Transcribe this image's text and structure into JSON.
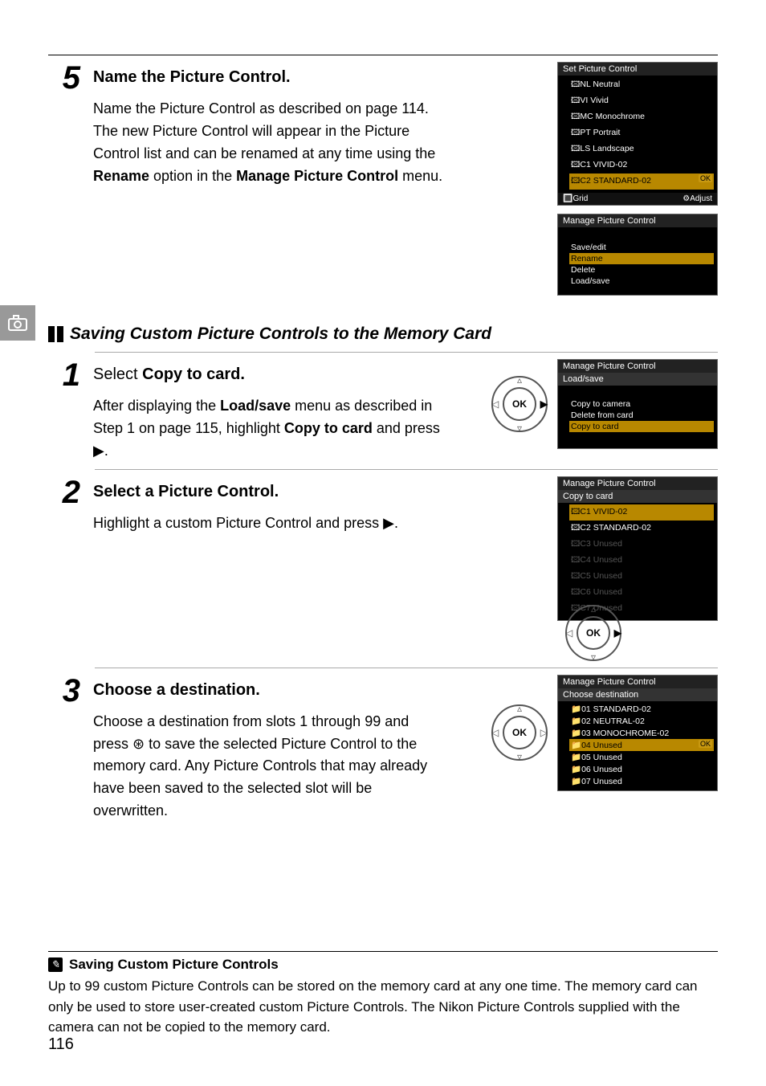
{
  "page_number": "116",
  "side_tab_icon": "camera-icon",
  "step5": {
    "num": "5",
    "title": "Name the Picture Control.",
    "text_parts": [
      "Name the Picture Control as described on page 114.  The new Picture Control will appear in the Picture Control list and can be renamed at any time using the ",
      "Rename",
      " option in the ",
      "Manage Picture Control",
      " menu."
    ],
    "screen1": {
      "title": "Set Picture Control",
      "items": [
        {
          "label": "🖾NL Neutral",
          "hl": false
        },
        {
          "label": "🖾VI Vivid",
          "hl": false
        },
        {
          "label": "🖾MC Monochrome",
          "hl": false
        },
        {
          "label": "🖾PT Portrait",
          "hl": false
        },
        {
          "label": "🖾LS Landscape",
          "hl": false
        },
        {
          "label": "🖾C1 VIVID-02",
          "hl": false
        },
        {
          "label": "🖾C2 STANDARD-02",
          "hl": true
        }
      ],
      "foot_left": "🔳Grid",
      "foot_right": "⚙Adjust",
      "ok_badge": "OK"
    },
    "screen2": {
      "title": "Manage Picture Control",
      "items": [
        {
          "label": "Save/edit",
          "hl": false
        },
        {
          "label": "Rename",
          "hl": true
        },
        {
          "label": "Delete",
          "hl": false
        },
        {
          "label": "Load/save",
          "hl": false
        }
      ]
    }
  },
  "section_heading": "Saving Custom Picture Controls to the Memory Card",
  "step1": {
    "num": "1",
    "title_prefix": "Select ",
    "title_bold": "Copy to card.",
    "text_parts": [
      "After displaying the ",
      "Load/save",
      " menu as described in Step 1 on page 115, highlight ",
      "Copy to card",
      " and press ▶."
    ],
    "screen": {
      "title": "Manage Picture Control",
      "sub": "Load/save",
      "items": [
        {
          "label": "Copy to camera",
          "hl": false
        },
        {
          "label": "Delete from card",
          "hl": false
        },
        {
          "label": "Copy to card",
          "hl": true
        }
      ]
    },
    "pad_active": "right"
  },
  "step2": {
    "num": "2",
    "title": "Select a Picture Control.",
    "text": "Highlight a custom Picture Control and press ▶.",
    "screen": {
      "title": "Manage Picture Control",
      "sub": "Copy to card",
      "items": [
        {
          "label": "🖾C1 VIVID-02",
          "hl": true
        },
        {
          "label": "🖾C2 STANDARD-02",
          "hl": false
        },
        {
          "label": "🖾C3 Unused",
          "hl": false,
          "dim": true
        },
        {
          "label": "🖾C4 Unused",
          "hl": false,
          "dim": true
        },
        {
          "label": "🖾C5 Unused",
          "hl": false,
          "dim": true
        },
        {
          "label": "🖾C6 Unused",
          "hl": false,
          "dim": true
        },
        {
          "label": "🖾C7 Unused",
          "hl": false,
          "dim": true
        }
      ]
    },
    "pad_active": "right"
  },
  "step3": {
    "num": "3",
    "title": "Choose a destination.",
    "text": "Choose a destination from slots 1 through 99 and press ⊛ to save the selected Picture Control to the memory card.  Any Picture Controls that may already have been saved to the selected slot will be overwritten.",
    "screen": {
      "title": "Manage Picture Control",
      "sub": "Choose destination",
      "items": [
        {
          "label": "📁01 STANDARD-02",
          "hl": false
        },
        {
          "label": "📁02 NEUTRAL-02",
          "hl": false
        },
        {
          "label": "📁03 MONOCHROME-02",
          "hl": false
        },
        {
          "label": "📁04 Unused",
          "hl": true
        },
        {
          "label": "📁05 Unused",
          "hl": false
        },
        {
          "label": "📁06 Unused",
          "hl": false
        },
        {
          "label": "📁07 Unused",
          "hl": false
        }
      ],
      "ok_badge": "OK"
    },
    "pad_active": "center"
  },
  "note": {
    "title": "Saving Custom Picture Controls",
    "text": "Up to 99 custom Picture Controls can be stored on the memory card at any one time.  The memory card can only be used to store user-created custom Picture Controls.  The Nikon Picture Controls supplied with the camera can not be copied to the memory card."
  }
}
